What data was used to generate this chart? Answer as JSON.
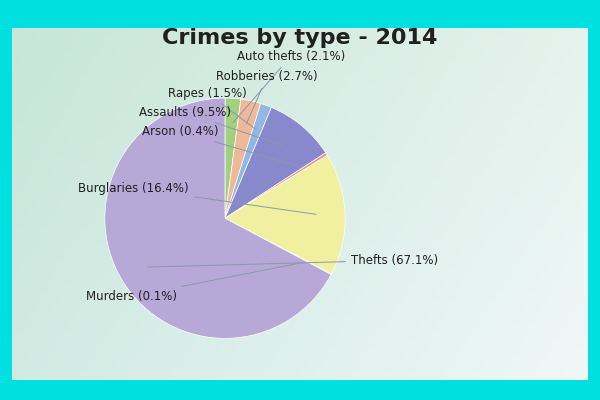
{
  "title": "Crimes by type - 2014",
  "ordered_labels": [
    "Auto thefts",
    "Robberies",
    "Rapes",
    "Assaults",
    "Arson",
    "Burglaries",
    "Murders",
    "Thefts"
  ],
  "ordered_values": [
    2.1,
    2.7,
    1.5,
    9.5,
    0.4,
    16.4,
    0.1,
    67.1
  ],
  "ordered_colors": [
    "#a0d080",
    "#f0b898",
    "#90b8e0",
    "#8888cc",
    "#f09090",
    "#f0f0a0",
    "#c0d8c0",
    "#b8a8d8"
  ],
  "background_cyan": "#00e0e0",
  "background_inner_tl": "#c8e8e0",
  "background_inner_br": "#e8f0e8",
  "title_fontsize": 16,
  "label_fontsize": 8.5,
  "title_color": "#202020"
}
